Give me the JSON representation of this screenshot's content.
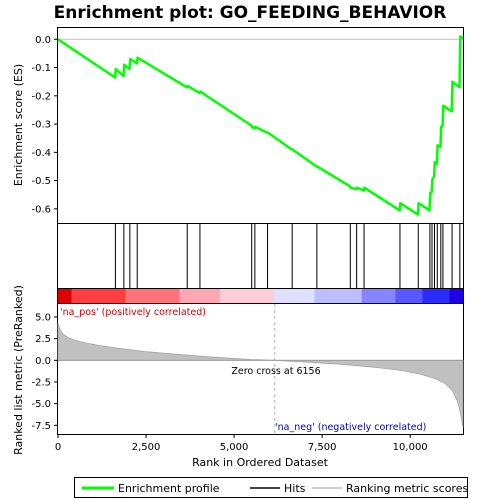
{
  "chart_data": {
    "type": "line",
    "title": "Enrichment plot: GO_FEEDING_BEHAVIOR",
    "xlabel": "Rank in Ordered Dataset",
    "xlim": [
      0,
      11500
    ],
    "x_ticks": [
      0,
      2500,
      5000,
      7500,
      10000
    ],
    "x_tick_labels": [
      "0",
      "2,500",
      "5,000",
      "7,500",
      "10,000"
    ],
    "es_panel": {
      "ylabel": "Enrichment score (ES)",
      "ylim": [
        -0.65,
        0.04
      ],
      "y_ticks": [
        0.0,
        -0.1,
        -0.2,
        -0.3,
        -0.4,
        -0.5,
        -0.6
      ],
      "y_tick_labels": [
        "0.0",
        "-0.1",
        "-0.2",
        "-0.3",
        "-0.4",
        "-0.5",
        "-0.6"
      ],
      "series": [
        {
          "name": "Enrichment profile",
          "color": "#00ff00",
          "x": [
            0,
            1620,
            1640,
            1860,
            1880,
            2030,
            2050,
            2240,
            2260,
            3660,
            3680,
            4020,
            4040,
            5490,
            5510,
            5580,
            5600,
            5940,
            5960,
            6640,
            6660,
            7340,
            7360,
            8290,
            8310,
            8470,
            8490,
            8680,
            8700,
            9700,
            9720,
            10220,
            10240,
            10550,
            10570,
            10610,
            10630,
            10680,
            10700,
            10760,
            10780,
            10860,
            10880,
            10920,
            10940,
            11180,
            11200,
            11400,
            11420,
            11500
          ],
          "y": [
            0.0,
            -0.135,
            -0.105,
            -0.13,
            -0.09,
            -0.105,
            -0.07,
            -0.085,
            -0.065,
            -0.17,
            -0.165,
            -0.19,
            -0.185,
            -0.305,
            -0.31,
            -0.315,
            -0.31,
            -0.33,
            -0.33,
            -0.39,
            -0.39,
            -0.45,
            -0.45,
            -0.52,
            -0.525,
            -0.53,
            -0.525,
            -0.535,
            -0.525,
            -0.605,
            -0.58,
            -0.62,
            -0.58,
            -0.605,
            -0.545,
            -0.54,
            -0.495,
            -0.485,
            -0.435,
            -0.44,
            -0.375,
            -0.38,
            -0.31,
            -0.305,
            -0.235,
            -0.255,
            -0.15,
            -0.17,
            0.01,
            0.005
          ]
        }
      ]
    },
    "hits": {
      "name": "Hits",
      "positions": [
        1630,
        1870,
        2040,
        2250,
        3670,
        4030,
        5500,
        5590,
        5950,
        6650,
        7350,
        8300,
        8480,
        8690,
        9710,
        10230,
        10560,
        10620,
        10690,
        10770,
        10870,
        10930,
        11190,
        11410
      ]
    },
    "metric_panel": {
      "ylabel": "Ranked list metric (PreRanked)",
      "ylim": [
        -8.5,
        6.5
      ],
      "y_ticks": [
        5.0,
        2.5,
        0.0,
        -2.5,
        -5.0,
        -7.5
      ],
      "y_tick_labels": [
        "5.0",
        "2.5",
        "0.0",
        "-2.5",
        "-5.0",
        "-7.5"
      ],
      "series": [
        {
          "name": "Ranking metric scores",
          "color": "#c0c0c0",
          "x": [
            0,
            50,
            150,
            300,
            500,
            800,
            1200,
            1800,
            2500,
            3500,
            4500,
            5500,
            6156,
            7000,
            8000,
            9000,
            9800,
            10300,
            10700,
            11000,
            11200,
            11350,
            11450,
            11500
          ],
          "y": [
            4.3,
            3.6,
            3.0,
            2.6,
            2.3,
            2.0,
            1.7,
            1.35,
            1.0,
            0.65,
            0.35,
            0.1,
            0.0,
            -0.2,
            -0.45,
            -0.8,
            -1.2,
            -1.6,
            -2.1,
            -2.7,
            -3.5,
            -4.8,
            -6.5,
            -7.8
          ]
        }
      ],
      "zero_cross_label": "Zero cross at 6156",
      "zero_cross_x": 6156,
      "pos_label": "'na_pos' (positively correlated)",
      "neg_label": "'na_neg' (negatively correlated)",
      "pos_color": "#cc0000",
      "neg_color": "#0000cc"
    },
    "legend": {
      "placement": "bottom",
      "entries": [
        "Enrichment profile",
        "Hits",
        "Ranking metric scores"
      ]
    },
    "colors": {
      "profile": "#00ff00",
      "hits": "#000000",
      "metric_fill": "#c0c0c0",
      "zero_line": "#b0b0b0"
    }
  }
}
